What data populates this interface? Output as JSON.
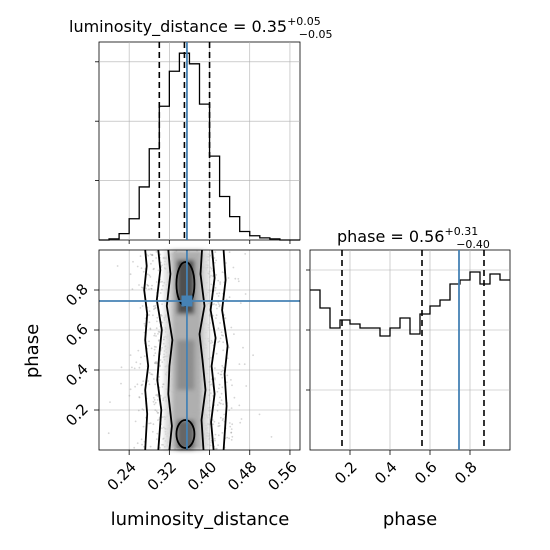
{
  "chart_data": {
    "type": "corner",
    "parameters": [
      "luminosity_distance",
      "phase"
    ],
    "truth": {
      "luminosity_distance": 0.355,
      "phase": 0.745
    },
    "panels": [
      {
        "type": "histogram",
        "parameter": "luminosity_distance",
        "title": "luminosity_distance = 0.35",
        "title_sup": "+0.05",
        "title_sub": "−0.05",
        "median": 0.35,
        "quantiles": [
          0.3,
          0.35,
          0.4
        ],
        "xlim": [
          0.18,
          0.58
        ],
        "bins": [
          0.18,
          0.2,
          0.22,
          0.24,
          0.26,
          0.28,
          0.3,
          0.32,
          0.34,
          0.36,
          0.38,
          0.4,
          0.42,
          0.44,
          0.46,
          0.48,
          0.5,
          0.52,
          0.54,
          0.56,
          0.58
        ],
        "counts": [
          0,
          2,
          12,
          40,
          100,
          172,
          252,
          318,
          352,
          332,
          256,
          158,
          82,
          44,
          16,
          8,
          4,
          2,
          0,
          0
        ],
        "grid": true
      },
      {
        "type": "2d-density",
        "x": "luminosity_distance",
        "y": "phase",
        "xlim": [
          0.18,
          0.58
        ],
        "ylim": [
          0.0,
          1.0
        ],
        "xticks": [
          "0.24",
          "0.32",
          "0.40",
          "0.48",
          "0.56"
        ],
        "yticks": [
          "0.2",
          "0.4",
          "0.6",
          "0.8"
        ],
        "xlabel": "luminosity_distance",
        "ylabel": "phase",
        "contour_levels": 4,
        "grid": true
      },
      {
        "type": "histogram",
        "parameter": "phase",
        "title": "phase = 0.56",
        "title_sup": "+0.31",
        "title_sub": "−0.40",
        "median": 0.56,
        "quantiles": [
          0.16,
          0.56,
          0.87
        ],
        "xlim": [
          0.0,
          1.0
        ],
        "xticks": [
          "0.2",
          "0.4",
          "0.6",
          "0.8"
        ],
        "xlabel": "phase",
        "bins": [
          0.0,
          0.05,
          0.1,
          0.15,
          0.2,
          0.25,
          0.3,
          0.35,
          0.4,
          0.45,
          0.5,
          0.55,
          0.6,
          0.65,
          0.7,
          0.75,
          0.8,
          0.85,
          0.9,
          0.95,
          1.0
        ],
        "counts": [
          0.8,
          0.71,
          0.61,
          0.65,
          0.63,
          0.61,
          0.61,
          0.57,
          0.61,
          0.66,
          0.58,
          0.68,
          0.72,
          0.75,
          0.83,
          0.85,
          0.89,
          0.83,
          0.88,
          0.85
        ],
        "ylim": [
          0,
          1.0
        ],
        "grid": true
      }
    ],
    "colors": {
      "line": "#000000",
      "truth": "#4682b4",
      "grid": "#b0b0b0",
      "scatter": "#888888"
    }
  }
}
